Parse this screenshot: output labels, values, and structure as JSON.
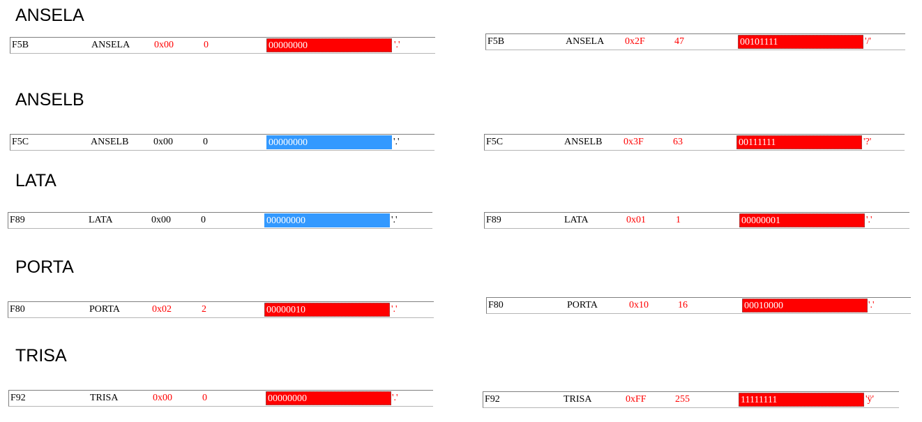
{
  "colors": {
    "changed": "#ff0000",
    "unchanged": "#000000",
    "bin_changed_bg": "#ff0000",
    "bin_selected_bg": "#3399ff"
  },
  "sections": [
    {
      "title": "ANSELA",
      "before": {
        "addr": "F5B",
        "name": "ANSELA",
        "hex": "0x00",
        "dec": "0",
        "bin": "00000000",
        "char": "'.'",
        "changed": true,
        "bin_style": "changed"
      },
      "after": {
        "addr": "F5B",
        "name": "ANSELA",
        "hex": "0x2F",
        "dec": "47",
        "bin": "00101111",
        "char": "'/'",
        "changed": true,
        "bin_style": "changed"
      }
    },
    {
      "title": "ANSELB",
      "before": {
        "addr": "F5C",
        "name": "ANSELB",
        "hex": "0x00",
        "dec": "0",
        "bin": "00000000",
        "char": "'.'",
        "changed": false,
        "bin_style": "selected"
      },
      "after": {
        "addr": "F5C",
        "name": "ANSELB",
        "hex": "0x3F",
        "dec": "63",
        "bin": "00111111",
        "char": "'?'",
        "changed": true,
        "bin_style": "changed"
      }
    },
    {
      "title": "LATA",
      "before": {
        "addr": "F89",
        "name": "LATA",
        "hex": "0x00",
        "dec": "0",
        "bin": "00000000",
        "char": "'.'",
        "changed": false,
        "bin_style": "selected"
      },
      "after": {
        "addr": "F89",
        "name": "LATA",
        "hex": "0x01",
        "dec": "1",
        "bin": "00000001",
        "char": "'.'",
        "changed": true,
        "bin_style": "changed"
      }
    },
    {
      "title": "PORTA",
      "before": {
        "addr": "F80",
        "name": "PORTA",
        "hex": "0x02",
        "dec": "2",
        "bin": "00000010",
        "char": "'.'",
        "changed": true,
        "bin_style": "changed"
      },
      "after": {
        "addr": "F80",
        "name": "PORTA",
        "hex": "0x10",
        "dec": "16",
        "bin": "00010000",
        "char": "'.'",
        "changed": true,
        "bin_style": "changed"
      }
    },
    {
      "title": "TRISA",
      "before": {
        "addr": "F92",
        "name": "TRISA",
        "hex": "0x00",
        "dec": "0",
        "bin": "00000000",
        "char": "'.'",
        "changed": true,
        "bin_style": "changed"
      },
      "after": {
        "addr": "F92",
        "name": "TRISA",
        "hex": "0xFF",
        "dec": "255",
        "bin": "11111111",
        "char": "'ÿ'",
        "changed": true,
        "bin_style": "changed"
      }
    }
  ]
}
